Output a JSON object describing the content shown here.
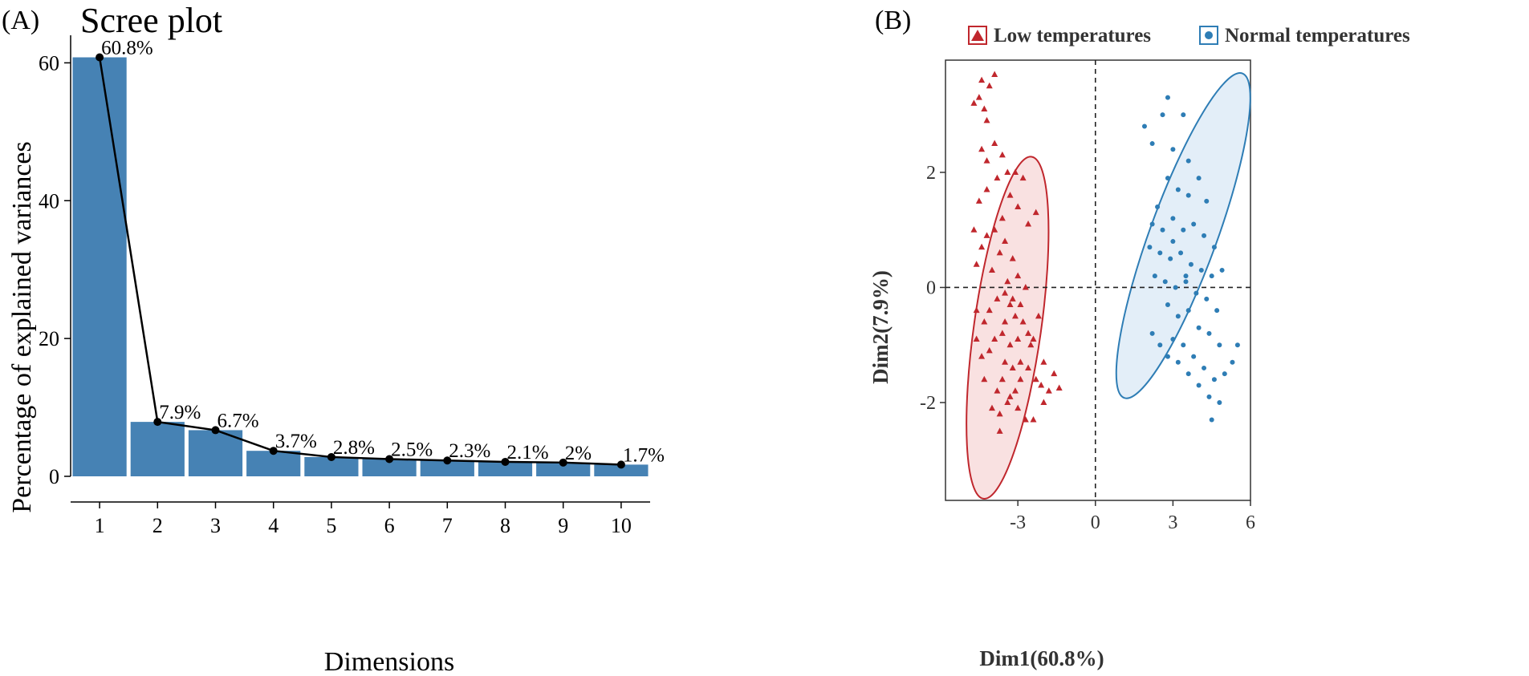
{
  "colors": {
    "bar": "#4682B4",
    "line": "#000000",
    "low": "#C0272D",
    "low_fill": "#F9E1E1",
    "normal": "#2E7DB5",
    "normal_fill": "#E3EEF8"
  },
  "chart_data": [
    {
      "panel_label": "(A)",
      "type": "bar",
      "title": "Scree plot",
      "xlabel": "Dimensions",
      "ylabel": "Percentage of explained variances",
      "categories": [
        "1",
        "2",
        "3",
        "4",
        "5",
        "6",
        "7",
        "8",
        "9",
        "10"
      ],
      "values": [
        60.8,
        7.9,
        6.7,
        3.7,
        2.8,
        2.5,
        2.3,
        2.1,
        2.0,
        1.7
      ],
      "value_labels": [
        "60.8%",
        "7.9%",
        "6.7%",
        "3.7%",
        "2.8%",
        "2.5%",
        "2.3%",
        "2.1%",
        "2%",
        "1.7%"
      ],
      "yticks": [
        0,
        20,
        40,
        60
      ],
      "ylim": [
        0,
        64
      ],
      "overlay": "line with points connecting bar tops"
    },
    {
      "panel_label": "(B)",
      "type": "scatter",
      "xlabel": "Dim1(60.8%)",
      "ylabel": "Dim2(7.9%)",
      "xticks": [
        -3,
        0,
        3,
        6
      ],
      "yticks": [
        -2,
        0,
        2
      ],
      "xlim": [
        -5.8,
        6
      ],
      "ylim": [
        -3.7,
        3.95
      ],
      "legend_position": "top",
      "reference_lines": {
        "x": 0,
        "y": 0
      },
      "series": [
        {
          "name": "Low temperatures",
          "marker": "triangle",
          "color_key": "low",
          "ellipse": {
            "center": [
              -3.4,
              -0.7
            ],
            "semi_axes": [
              1.3,
              3.0
            ],
            "angle_deg": 8
          },
          "points": [
            [
              -4.5,
              3.3
            ],
            [
              -4.4,
              3.6
            ],
            [
              -4.1,
              3.5
            ],
            [
              -3.9,
              3.7
            ],
            [
              -4.3,
              3.1
            ],
            [
              -4.2,
              2.9
            ],
            [
              -4.7,
              3.2
            ],
            [
              -4.4,
              2.4
            ],
            [
              -4.2,
              2.2
            ],
            [
              -3.9,
              2.5
            ],
            [
              -3.6,
              2.3
            ],
            [
              -3.4,
              2.0
            ],
            [
              -3.1,
              2.0
            ],
            [
              -2.8,
              1.9
            ],
            [
              -2.3,
              1.3
            ],
            [
              -2.6,
              1.1
            ],
            [
              -3.0,
              1.4
            ],
            [
              -3.3,
              1.6
            ],
            [
              -3.6,
              1.2
            ],
            [
              -3.9,
              1.0
            ],
            [
              -4.2,
              0.9
            ],
            [
              -4.4,
              0.7
            ],
            [
              -4.6,
              0.4
            ],
            [
              -4.0,
              0.3
            ],
            [
              -3.7,
              0.6
            ],
            [
              -3.5,
              0.8
            ],
            [
              -3.2,
              0.5
            ],
            [
              -3.0,
              0.2
            ],
            [
              -2.7,
              0.0
            ],
            [
              -2.9,
              -0.3
            ],
            [
              -3.2,
              -0.2
            ],
            [
              -3.5,
              -0.1
            ],
            [
              -3.8,
              -0.2
            ],
            [
              -4.1,
              -0.4
            ],
            [
              -4.3,
              -0.6
            ],
            [
              -3.4,
              0.1
            ],
            [
              -3.3,
              -0.3
            ],
            [
              -3.1,
              -0.5
            ],
            [
              -2.8,
              -0.6
            ],
            [
              -2.6,
              -0.8
            ],
            [
              -2.4,
              -0.9
            ],
            [
              -3.0,
              -0.9
            ],
            [
              -3.3,
              -1.0
            ],
            [
              -3.6,
              -0.8
            ],
            [
              -3.9,
              -0.9
            ],
            [
              -4.1,
              -1.1
            ],
            [
              -4.4,
              -1.2
            ],
            [
              -4.6,
              -0.9
            ],
            [
              -3.5,
              -1.3
            ],
            [
              -3.2,
              -1.4
            ],
            [
              -2.9,
              -1.3
            ],
            [
              -2.6,
              -1.4
            ],
            [
              -2.3,
              -1.6
            ],
            [
              -2.1,
              -1.7
            ],
            [
              -1.8,
              -1.8
            ],
            [
              -1.4,
              -1.75
            ],
            [
              -1.6,
              -1.5
            ],
            [
              -2.0,
              -1.3
            ],
            [
              -2.9,
              -1.6
            ],
            [
              -3.1,
              -1.8
            ],
            [
              -3.3,
              -1.9
            ],
            [
              -3.6,
              -1.6
            ],
            [
              -3.8,
              -1.8
            ],
            [
              -4.0,
              -2.1
            ],
            [
              -3.7,
              -2.2
            ],
            [
              -3.4,
              -2.0
            ],
            [
              -3.0,
              -2.1
            ],
            [
              -2.7,
              -2.3
            ],
            [
              -2.4,
              -2.3
            ],
            [
              -2.0,
              -2.0
            ],
            [
              -2.5,
              -1.0
            ],
            [
              -2.2,
              -0.5
            ],
            [
              -4.5,
              1.5
            ],
            [
              -4.2,
              1.7
            ],
            [
              -3.8,
              1.9
            ],
            [
              -4.7,
              1.0
            ],
            [
              -3.7,
              -2.5
            ],
            [
              -4.3,
              -1.6
            ],
            [
              -4.6,
              -0.4
            ],
            [
              -3.5,
              -0.6
            ]
          ]
        },
        {
          "name": "Normal temperatures",
          "marker": "circle",
          "color_key": "normal",
          "ellipse": {
            "center": [
              3.4,
              0.9
            ],
            "semi_axes": [
              1.3,
              3.0
            ],
            "angle_deg": 20
          },
          "points": [
            [
              1.9,
              2.8
            ],
            [
              2.2,
              2.5
            ],
            [
              2.6,
              3.0
            ],
            [
              2.8,
              3.3
            ],
            [
              3.4,
              3.0
            ],
            [
              3.0,
              2.4
            ],
            [
              3.6,
              2.2
            ],
            [
              2.8,
              1.9
            ],
            [
              3.2,
              1.7
            ],
            [
              3.6,
              1.6
            ],
            [
              4.0,
              1.9
            ],
            [
              4.3,
              1.5
            ],
            [
              2.4,
              1.4
            ],
            [
              2.2,
              1.1
            ],
            [
              2.6,
              1.0
            ],
            [
              3.0,
              1.2
            ],
            [
              3.4,
              1.0
            ],
            [
              3.8,
              1.1
            ],
            [
              4.2,
              0.9
            ],
            [
              4.6,
              0.7
            ],
            [
              2.1,
              0.7
            ],
            [
              2.5,
              0.6
            ],
            [
              2.9,
              0.5
            ],
            [
              3.3,
              0.6
            ],
            [
              3.7,
              0.4
            ],
            [
              4.1,
              0.3
            ],
            [
              4.5,
              0.2
            ],
            [
              4.9,
              0.3
            ],
            [
              2.3,
              0.2
            ],
            [
              2.7,
              0.1
            ],
            [
              3.1,
              0.0
            ],
            [
              3.5,
              0.1
            ],
            [
              3.9,
              -0.1
            ],
            [
              4.3,
              -0.2
            ],
            [
              4.7,
              -0.4
            ],
            [
              2.8,
              -0.3
            ],
            [
              3.2,
              -0.5
            ],
            [
              3.6,
              -0.4
            ],
            [
              4.0,
              -0.7
            ],
            [
              4.4,
              -0.8
            ],
            [
              4.8,
              -1.0
            ],
            [
              3.0,
              -0.9
            ],
            [
              3.4,
              -1.0
            ],
            [
              3.8,
              -1.2
            ],
            [
              4.2,
              -1.4
            ],
            [
              4.6,
              -1.6
            ],
            [
              5.0,
              -1.5
            ],
            [
              5.3,
              -1.3
            ],
            [
              4.4,
              -1.9
            ],
            [
              4.8,
              -2.0
            ],
            [
              4.0,
              -1.7
            ],
            [
              3.6,
              -1.5
            ],
            [
              3.2,
              -1.3
            ],
            [
              2.8,
              -1.2
            ],
            [
              2.5,
              -1.0
            ],
            [
              2.2,
              -0.8
            ],
            [
              5.5,
              -1.0
            ],
            [
              4.5,
              -2.3
            ],
            [
              3.5,
              0.2
            ],
            [
              3.0,
              0.8
            ]
          ]
        }
      ]
    }
  ]
}
